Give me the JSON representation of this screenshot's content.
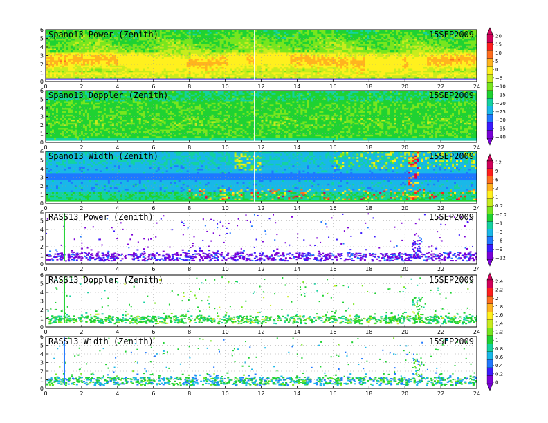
{
  "chart_data": {
    "type": "heatmap",
    "date": "15SEP2009",
    "x_ticks": [
      0,
      2,
      4,
      6,
      8,
      10,
      12,
      14,
      16,
      18,
      20,
      22,
      24
    ],
    "y_ticks": [
      0,
      1,
      2,
      3,
      4,
      5,
      6
    ],
    "xlim": [
      0,
      24
    ],
    "ylim": [
      0,
      6
    ],
    "panels": [
      {
        "title": "Spano13 Power (Zenith)",
        "date": "15SEP2009",
        "kind": "power",
        "colorbar": 0
      },
      {
        "title": "Spano13 Doppler (Zenith)",
        "date": "15SEP2009",
        "kind": "sdoppler",
        "colorbar": 0
      },
      {
        "title": "Spano13 Width (Zenith)",
        "date": "15SEP2009",
        "kind": "swidth",
        "colorbar": 1
      },
      {
        "title": "RASS13 Power (Zenith)",
        "date": "15SEP2009",
        "kind": "rpower",
        "colorbar": 1
      },
      {
        "title": "RASS13 Doppler (Zenith)",
        "date": "15SEP2009",
        "kind": "rdoppler",
        "colorbar": 2
      },
      {
        "title": "RASS13 Width (Zenith)",
        "date": "15SEP2009",
        "kind": "rwidth",
        "colorbar": 2
      }
    ],
    "colorbars": [
      {
        "labels": [
          "20",
          "15",
          "10",
          "5",
          "0",
          "−5",
          "−10",
          "−15",
          "−20",
          "−25",
          "−30",
          "−35",
          "−40"
        ]
      },
      {
        "labels": [
          "12",
          "9",
          "6",
          "3",
          "1",
          "0.2",
          "−0.2",
          "−1",
          "−3",
          "−6",
          "−9",
          "−12"
        ]
      },
      {
        "labels": [
          "2.4",
          "2.2",
          "2",
          "1.8",
          "1.6",
          "1.4",
          "1.2",
          "1",
          "0.8",
          "0.6",
          "0.4",
          "0.2",
          "0"
        ]
      }
    ],
    "palette": [
      "#7a00d8",
      "#3a1aff",
      "#1f78ff",
      "#19b8e8",
      "#14d2a0",
      "#1fd232",
      "#78e61e",
      "#c8ec1e",
      "#fff01e",
      "#ffb41e",
      "#ff6e1e",
      "#ff1e1e",
      "#d2005a"
    ]
  }
}
